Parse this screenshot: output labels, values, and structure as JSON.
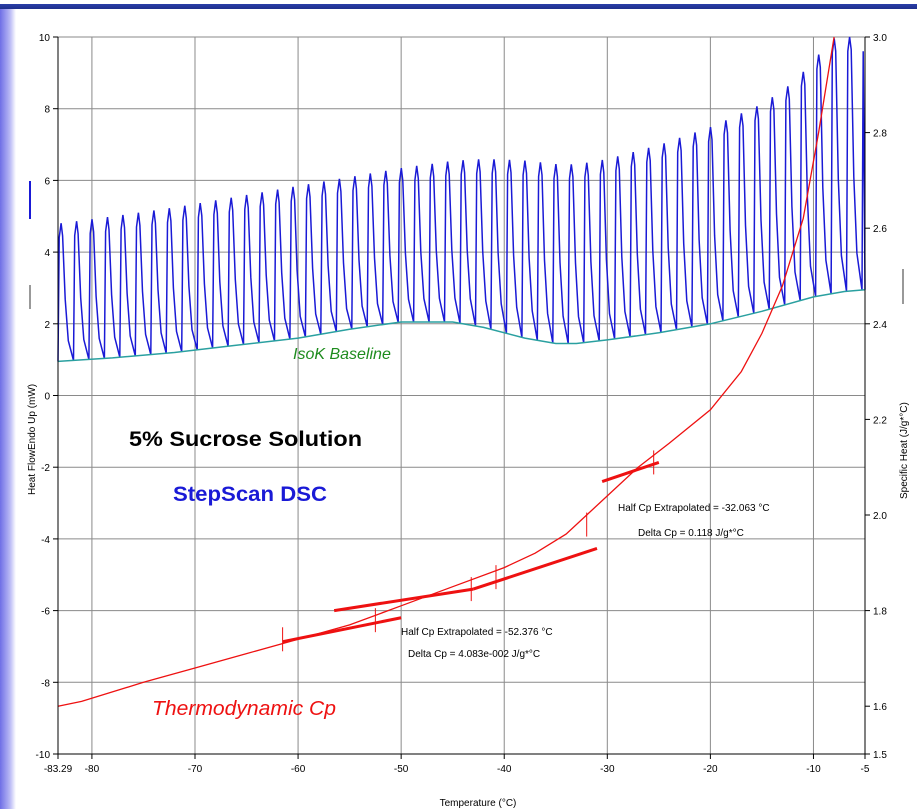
{
  "chart_data": {
    "type": "line",
    "title": "5% Sucrose Solution",
    "subtitle": "StepScan DSC",
    "xlabel": "Temperature (°C)",
    "ylabel_left": "Heat FlowEndo Up (mW)",
    "ylabel_right": "Specific Heat (J/g*°C)",
    "xlim": [
      -83.29,
      -5
    ],
    "ylim_left": [
      -10,
      10
    ],
    "ylim_right": [
      1.5,
      3.0
    ],
    "x_ticks": [
      "-83.29",
      "-80",
      "-70",
      "-60",
      "-50",
      "-40",
      "-30",
      "-20",
      "-10",
      "-5"
    ],
    "y_left_ticks": [
      "10",
      "8",
      "6",
      "4",
      "2",
      "0",
      "-2",
      "-4",
      "-6",
      "-8",
      "-10"
    ],
    "y_right_ticks": [
      "3.0",
      "2.8",
      "2.6",
      "2.4",
      "2.2",
      "2.0",
      "1.8",
      "1.6",
      "1.5"
    ],
    "grid": true,
    "colors": {
      "heat_flow": "#1a1ad6",
      "baseline": "#2aa0a0",
      "cp": "#ee1111",
      "title": "#000000",
      "subtitle": "#1a1ad6",
      "isok_label": "#1e8c1e",
      "cp_label": "#ee1111"
    },
    "series": [
      {
        "name": "IsoK Baseline",
        "axis": "left",
        "x": [
          -83.29,
          -78,
          -72,
          -66,
          -60,
          -55,
          -50,
          -45,
          -42,
          -38,
          -35,
          -33,
          -30,
          -25,
          -20,
          -15,
          -10,
          -7,
          -5
        ],
        "y": [
          0.95,
          1.05,
          1.2,
          1.4,
          1.6,
          1.85,
          2.05,
          2.05,
          1.9,
          1.6,
          1.45,
          1.45,
          1.55,
          1.75,
          2.0,
          2.35,
          2.75,
          2.9,
          2.95
        ]
      },
      {
        "name": "Heat Flow peaks",
        "axis": "left",
        "x": [
          -83.29,
          -78,
          -72,
          -66,
          -60,
          -55,
          -50,
          -45,
          -42,
          -38,
          -35,
          -33,
          -30,
          -25,
          -20,
          -15,
          -12,
          -10,
          -8,
          -5
        ],
        "y": [
          4.8,
          5.0,
          5.25,
          5.55,
          5.85,
          6.1,
          6.35,
          6.55,
          6.6,
          6.55,
          6.45,
          6.45,
          6.6,
          7.0,
          7.5,
          8.15,
          8.75,
          9.4,
          10,
          10
        ]
      },
      {
        "name": "Thermodynamic Cp",
        "axis": "right",
        "x": [
          -83.29,
          -81,
          -75,
          -70,
          -65,
          -60,
          -55,
          -50,
          -45,
          -40,
          -37,
          -34,
          -32,
          -30,
          -27,
          -24,
          -20,
          -17,
          -15,
          -13,
          -11,
          -9.5,
          -8
        ],
        "y": [
          1.6,
          1.61,
          1.65,
          1.68,
          1.71,
          1.74,
          1.77,
          1.81,
          1.85,
          1.89,
          1.92,
          1.96,
          2.0,
          2.04,
          2.1,
          2.15,
          2.22,
          2.3,
          2.38,
          2.48,
          2.62,
          2.8,
          3.0
        ]
      }
    ],
    "tangent_lines": [
      {
        "axis": "right",
        "x": [
          -61.5,
          -50
        ],
        "y": [
          1.735,
          1.785
        ]
      },
      {
        "axis": "right",
        "x": [
          -56.5,
          -43
        ],
        "y": [
          1.8,
          1.845
        ]
      },
      {
        "axis": "right",
        "x": [
          -43,
          -31
        ],
        "y": [
          1.845,
          1.93
        ]
      },
      {
        "axis": "right",
        "x": [
          -30.5,
          -25
        ],
        "y": [
          2.07,
          2.11
        ]
      }
    ],
    "markers": [
      {
        "axis": "right",
        "x": -61.5,
        "y": 1.74
      },
      {
        "axis": "right",
        "x": -52.5,
        "y": 1.78
      },
      {
        "axis": "right",
        "x": -43.2,
        "y": 1.845
      },
      {
        "axis": "right",
        "x": -40.8,
        "y": 1.87
      },
      {
        "axis": "right",
        "x": -32,
        "y": 1.98
      },
      {
        "axis": "right",
        "x": -25.5,
        "y": 2.11
      }
    ],
    "annotations": [
      {
        "text": "Half Cp Extrapolated = -32.063 °C"
      },
      {
        "text": "Delta Cp = 0.118 J/g*°C"
      },
      {
        "text": "Half Cp Extrapolated = -52.376 °C"
      },
      {
        "text": "Delta Cp = 4.083e-002 J/g*°C"
      }
    ],
    "labels": {
      "isok": "IsoK Baseline",
      "cp": "Thermodynamic Cp"
    }
  }
}
